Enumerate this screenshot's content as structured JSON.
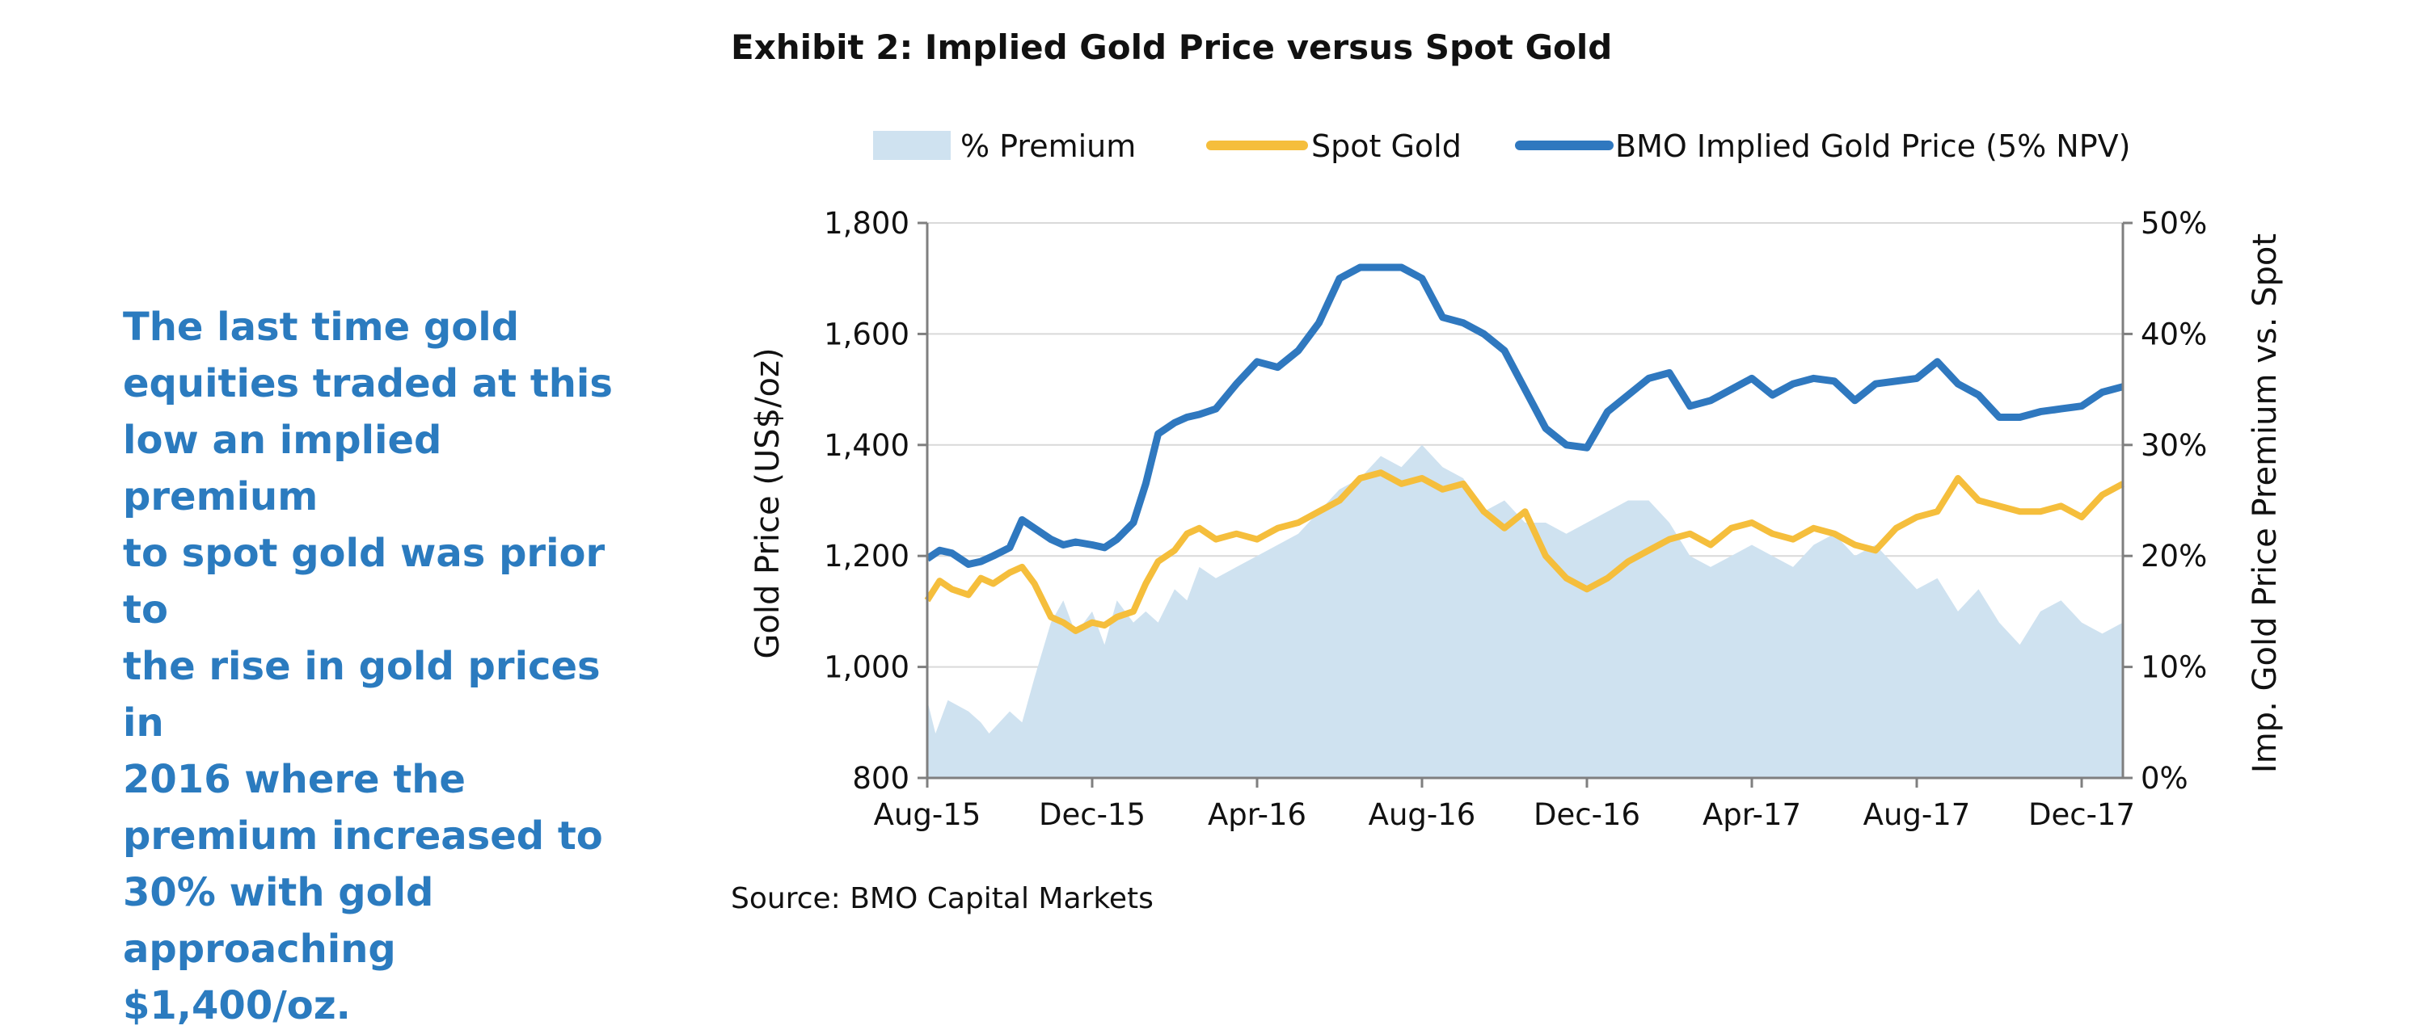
{
  "callout": {
    "lines": [
      "The last time gold",
      "equities traded at this",
      "low an implied premium",
      "to spot gold was prior to",
      "the rise in gold prices in",
      "2016 where the",
      "premium increased to",
      "30% with gold",
      "approaching $1,400/oz."
    ]
  },
  "exhibit_title": "Exhibit 2:  Implied Gold Price versus Spot Gold",
  "source": "Source: BMO Capital Markets",
  "colors": {
    "premium_area": "#cfe2f0",
    "spot_gold": "#f5be3c",
    "implied": "#2f78bf",
    "grid": "#d9d9d9",
    "axis": "#7f7f7f"
  },
  "chart_data": {
    "type": "line",
    "title": "Exhibit 2:  Implied Gold Price versus Spot Gold",
    "ylabel": "Gold Price (US$/oz)",
    "y2label": "Imp. Gold Price Premium vs. Spot",
    "ylim": [
      800,
      1800
    ],
    "y2lim": [
      0,
      50
    ],
    "xlim": [
      0,
      29
    ],
    "x_unit": "months since Aug-15",
    "x_ticks": [
      0,
      4,
      8,
      12,
      16,
      20,
      24,
      28
    ],
    "x_tick_labels": [
      "Aug-15",
      "Dec-15",
      "Apr-16",
      "Aug-16",
      "Dec-16",
      "Apr-17",
      "Aug-17",
      "Dec-17"
    ],
    "y_ticks": [
      800,
      1000,
      1200,
      1400,
      1600,
      1800
    ],
    "y_tick_labels": [
      "800",
      "1,000",
      "1,200",
      "1,400",
      "1,600",
      "1,800"
    ],
    "y2_ticks": [
      0,
      10,
      20,
      30,
      40,
      50
    ],
    "y2_tick_labels": [
      "0%",
      "10%",
      "20%",
      "30%",
      "40%",
      "50%"
    ],
    "grid": true,
    "legend_position": "top",
    "legend": [
      "% Premium",
      "Spot Gold",
      "BMO Implied Gold Price (5% NPV)"
    ],
    "series": [
      {
        "name": "% Premium",
        "kind": "area",
        "axis": "right",
        "x": [
          0,
          0.2,
          0.5,
          1.0,
          1.3,
          1.5,
          2.0,
          2.3,
          2.6,
          3.0,
          3.3,
          3.6,
          4.0,
          4.3,
          4.6,
          5.0,
          5.3,
          5.6,
          6.0,
          6.3,
          6.6,
          7.0,
          7.5,
          8.0,
          8.5,
          9.0,
          9.5,
          10.0,
          10.5,
          11.0,
          11.5,
          12.0,
          12.5,
          13.0,
          13.5,
          14.0,
          14.5,
          15.0,
          15.5,
          16.0,
          16.5,
          17.0,
          17.5,
          18.0,
          18.5,
          19.0,
          19.5,
          20.0,
          20.5,
          21.0,
          21.5,
          22.0,
          22.5,
          23.0,
          23.5,
          24.0,
          24.5,
          25.0,
          25.5,
          26.0,
          26.5,
          27.0,
          27.5,
          28.0,
          28.5,
          29.0
        ],
        "values": [
          7,
          4,
          7,
          6,
          5,
          4,
          6,
          5,
          9,
          14,
          16,
          13,
          15,
          12,
          16,
          14,
          15,
          14,
          17,
          16,
          19,
          18,
          19,
          20,
          21,
          22,
          24,
          26,
          27,
          29,
          28,
          30,
          28,
          27,
          24,
          25,
          23,
          23,
          22,
          23,
          24,
          25,
          25,
          23,
          20,
          19,
          20,
          21,
          20,
          19,
          21,
          22,
          20,
          21,
          19,
          17,
          18,
          15,
          17,
          14,
          12,
          15,
          16,
          14,
          13,
          14
        ]
      },
      {
        "name": "Spot Gold",
        "kind": "line",
        "axis": "left",
        "x": [
          0,
          0.3,
          0.6,
          1.0,
          1.3,
          1.6,
          2.0,
          2.3,
          2.6,
          3.0,
          3.3,
          3.6,
          4.0,
          4.3,
          4.6,
          5.0,
          5.3,
          5.6,
          6.0,
          6.3,
          6.6,
          7.0,
          7.5,
          8.0,
          8.5,
          9.0,
          9.5,
          10.0,
          10.5,
          11.0,
          11.5,
          12.0,
          12.5,
          13.0,
          13.5,
          14.0,
          14.5,
          15.0,
          15.5,
          16.0,
          16.5,
          17.0,
          17.5,
          18.0,
          18.5,
          19.0,
          19.5,
          20.0,
          20.5,
          21.0,
          21.5,
          22.0,
          22.5,
          23.0,
          23.5,
          24.0,
          24.5,
          25.0,
          25.5,
          26.0,
          26.5,
          27.0,
          27.5,
          28.0,
          28.5,
          29.0
        ],
        "values": [
          1120,
          1155,
          1140,
          1130,
          1160,
          1150,
          1170,
          1180,
          1150,
          1090,
          1080,
          1065,
          1080,
          1075,
          1090,
          1100,
          1150,
          1190,
          1210,
          1240,
          1250,
          1230,
          1240,
          1230,
          1250,
          1260,
          1280,
          1300,
          1340,
          1350,
          1330,
          1340,
          1320,
          1330,
          1280,
          1250,
          1280,
          1200,
          1160,
          1140,
          1160,
          1190,
          1210,
          1230,
          1240,
          1220,
          1250,
          1260,
          1240,
          1230,
          1250,
          1240,
          1220,
          1210,
          1250,
          1270,
          1280,
          1340,
          1300,
          1290,
          1280,
          1280,
          1290,
          1270,
          1310,
          1330
        ]
      },
      {
        "name": "BMO Implied Gold Price (5% NPV)",
        "kind": "line",
        "axis": "left",
        "x": [
          0,
          0.3,
          0.6,
          1.0,
          1.3,
          1.6,
          2.0,
          2.3,
          2.6,
          3.0,
          3.3,
          3.6,
          4.0,
          4.3,
          4.6,
          5.0,
          5.3,
          5.6,
          6.0,
          6.3,
          6.6,
          7.0,
          7.5,
          8.0,
          8.5,
          9.0,
          9.5,
          10.0,
          10.5,
          11.0,
          11.5,
          12.0,
          12.5,
          13.0,
          13.5,
          14.0,
          14.5,
          15.0,
          15.5,
          16.0,
          16.5,
          17.0,
          17.5,
          18.0,
          18.5,
          19.0,
          19.5,
          20.0,
          20.5,
          21.0,
          21.5,
          22.0,
          22.5,
          23.0,
          23.5,
          24.0,
          24.5,
          25.0,
          25.5,
          26.0,
          26.5,
          27.0,
          27.5,
          28.0,
          28.5,
          29.0
        ],
        "values": [
          1195,
          1210,
          1205,
          1185,
          1190,
          1200,
          1215,
          1265,
          1250,
          1230,
          1220,
          1225,
          1220,
          1215,
          1230,
          1260,
          1330,
          1420,
          1440,
          1450,
          1455,
          1465,
          1510,
          1550,
          1540,
          1570,
          1620,
          1700,
          1720,
          1720,
          1720,
          1700,
          1630,
          1620,
          1600,
          1570,
          1500,
          1430,
          1400,
          1395,
          1460,
          1490,
          1520,
          1530,
          1470,
          1480,
          1500,
          1520,
          1490,
          1510,
          1520,
          1515,
          1480,
          1510,
          1515,
          1520,
          1550,
          1510,
          1490,
          1450,
          1450,
          1460,
          1465,
          1470,
          1495,
          1505
        ]
      }
    ]
  }
}
